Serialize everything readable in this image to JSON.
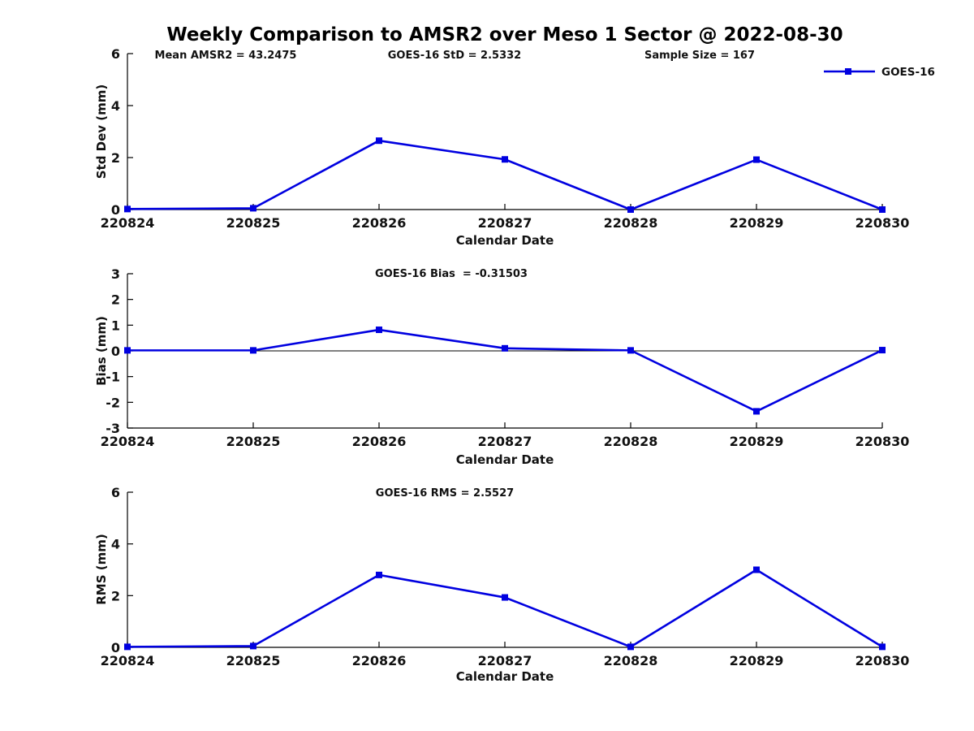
{
  "figure": {
    "title": "Weekly Comparison to AMSR2 over Meso 1 Sector @ 2022-08-30",
    "colors": {
      "line": "#0000e0",
      "axis": "#000000",
      "text": "#111111",
      "background": "#ffffff"
    }
  },
  "legend": {
    "label": "GOES-16"
  },
  "chart_data": [
    {
      "type": "line",
      "ylabel": "Std Dev (mm)",
      "xlabel": "Calendar Date",
      "categories": [
        "220824",
        "220825",
        "220826",
        "220827",
        "220828",
        "220829",
        "220830"
      ],
      "series": [
        {
          "name": "GOES-16",
          "values": [
            0.02,
            0.05,
            2.65,
            1.93,
            0.0,
            1.92,
            0.0
          ]
        }
      ],
      "ylim": [
        0,
        6
      ],
      "yticks": [
        0,
        2,
        4,
        6
      ],
      "grid": false,
      "legend_position": "top-right",
      "annotations": [
        "Mean AMSR2 = 43.2475",
        "GOES-16 StD = 2.5332",
        "Sample Size = 167"
      ]
    },
    {
      "type": "line",
      "ylabel": "Bias (mm)",
      "xlabel": "Calendar Date",
      "categories": [
        "220824",
        "220825",
        "220826",
        "220827",
        "220828",
        "220829",
        "220830"
      ],
      "series": [
        {
          "name": "GOES-16",
          "values": [
            0.02,
            0.02,
            0.82,
            0.1,
            0.02,
            -2.35,
            0.03
          ]
        }
      ],
      "ylim": [
        -3,
        3
      ],
      "yticks": [
        -3,
        -2,
        -1,
        0,
        1,
        2,
        3
      ],
      "zero_line": true,
      "grid": false,
      "annotations": [
        "GOES-16 Bias  = -0.31503"
      ]
    },
    {
      "type": "line",
      "ylabel": "RMS (mm)",
      "xlabel": "Calendar Date",
      "categories": [
        "220824",
        "220825",
        "220826",
        "220827",
        "220828",
        "220829",
        "220830"
      ],
      "series": [
        {
          "name": "GOES-16",
          "values": [
            0.02,
            0.05,
            2.8,
            1.93,
            0.02,
            3.0,
            0.02
          ]
        }
      ],
      "ylim": [
        0,
        6
      ],
      "yticks": [
        0,
        2,
        4,
        6
      ],
      "grid": false,
      "annotations": [
        "GOES-16 RMS = 2.5527"
      ]
    }
  ]
}
